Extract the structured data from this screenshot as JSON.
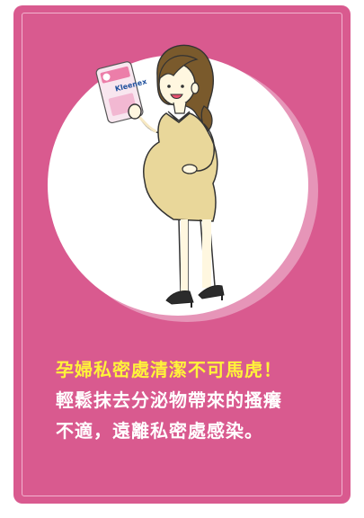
{
  "card": {
    "background": "#d95a8f",
    "border_color": "#f2b3cf"
  },
  "illustration": {
    "subject": "pregnant-woman-holding-wipes",
    "package_brand": "Kleenex"
  },
  "text": {
    "headline": "孕婦私密處清潔不可馬虎！",
    "headline_color": "#fff33a",
    "body_line_1": "輕鬆抹去分泌物帶來的搔癢",
    "body_line_2": "不適，遠離私密處感染。",
    "body_color": "#ffffff"
  }
}
